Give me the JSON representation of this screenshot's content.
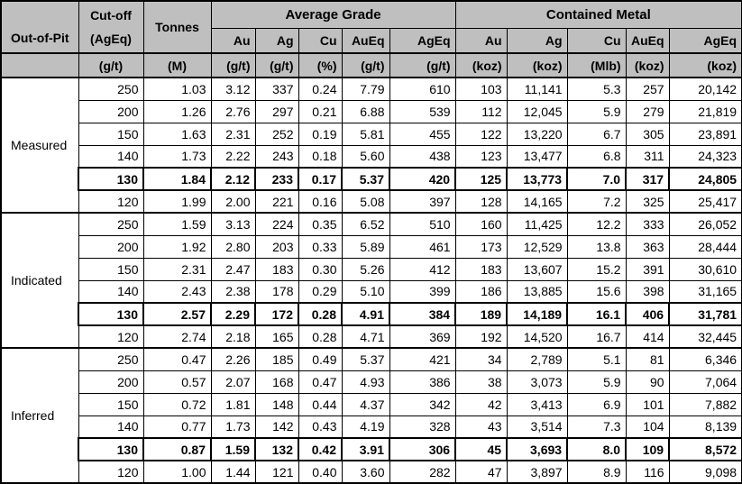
{
  "colors": {
    "header_bg": "#bfbfbf",
    "border": "#000000",
    "body_bg": "#ffffff"
  },
  "table": {
    "row_header": {
      "title": "Out-of-Pit"
    },
    "cutoff": {
      "line1": "Cut-off",
      "line2": "(AgEq)",
      "unit": "(g/t)"
    },
    "tonnes": {
      "label": "Tonnes",
      "unit": "(M)"
    },
    "groups": [
      {
        "label": "Average Grade",
        "columns": [
          "Au",
          "Ag",
          "Cu",
          "AuEq",
          "AgEq"
        ],
        "units": [
          "(g/t)",
          "(g/t)",
          "(%)",
          "(g/t)",
          "(g/t)"
        ]
      },
      {
        "label": "Contained Metal",
        "columns": [
          "Au",
          "Ag",
          "Cu",
          "AuEq",
          "AgEq"
        ],
        "units": [
          "(koz)",
          "(koz)",
          "(Mlb)",
          "(koz)",
          "(koz)"
        ]
      }
    ],
    "sections": [
      {
        "name": "Measured",
        "rows": [
          {
            "bold": false,
            "cells": [
              "250",
              "1.03",
              "3.12",
              "337",
              "0.24",
              "7.79",
              "610",
              "103",
              "11,141",
              "5.3",
              "257",
              "20,142"
            ]
          },
          {
            "bold": false,
            "cells": [
              "200",
              "1.26",
              "2.76",
              "297",
              "0.21",
              "6.88",
              "539",
              "112",
              "12,045",
              "5.9",
              "279",
              "21,819"
            ]
          },
          {
            "bold": false,
            "cells": [
              "150",
              "1.63",
              "2.31",
              "252",
              "0.19",
              "5.81",
              "455",
              "122",
              "13,220",
              "6.7",
              "305",
              "23,891"
            ]
          },
          {
            "bold": false,
            "cells": [
              "140",
              "1.73",
              "2.22",
              "243",
              "0.18",
              "5.60",
              "438",
              "123",
              "13,477",
              "6.8",
              "311",
              "24,323"
            ]
          },
          {
            "bold": true,
            "cells": [
              "130",
              "1.84",
              "2.12",
              "233",
              "0.17",
              "5.37",
              "420",
              "125",
              "13,773",
              "7.0",
              "317",
              "24,805"
            ]
          },
          {
            "bold": false,
            "cells": [
              "120",
              "1.99",
              "2.00",
              "221",
              "0.16",
              "5.08",
              "397",
              "128",
              "14,165",
              "7.2",
              "325",
              "25,417"
            ]
          }
        ]
      },
      {
        "name": "Indicated",
        "rows": [
          {
            "bold": false,
            "cells": [
              "250",
              "1.59",
              "3.13",
              "224",
              "0.35",
              "6.52",
              "510",
              "160",
              "11,425",
              "12.2",
              "333",
              "26,052"
            ]
          },
          {
            "bold": false,
            "cells": [
              "200",
              "1.92",
              "2.80",
              "203",
              "0.33",
              "5.89",
              "461",
              "173",
              "12,529",
              "13.8",
              "363",
              "28,444"
            ]
          },
          {
            "bold": false,
            "cells": [
              "150",
              "2.31",
              "2.47",
              "183",
              "0.30",
              "5.26",
              "412",
              "183",
              "13,607",
              "15.2",
              "391",
              "30,610"
            ]
          },
          {
            "bold": false,
            "cells": [
              "140",
              "2.43",
              "2.38",
              "178",
              "0.29",
              "5.10",
              "399",
              "186",
              "13,885",
              "15.6",
              "398",
              "31,165"
            ]
          },
          {
            "bold": true,
            "cells": [
              "130",
              "2.57",
              "2.29",
              "172",
              "0.28",
              "4.91",
              "384",
              "189",
              "14,189",
              "16.1",
              "406",
              "31,781"
            ]
          },
          {
            "bold": false,
            "cells": [
              "120",
              "2.74",
              "2.18",
              "165",
              "0.28",
              "4.71",
              "369",
              "192",
              "14,520",
              "16.7",
              "414",
              "32,445"
            ]
          }
        ]
      },
      {
        "name": "Inferred",
        "rows": [
          {
            "bold": false,
            "cells": [
              "250",
              "0.47",
              "2.26",
              "185",
              "0.49",
              "5.37",
              "421",
              "34",
              "2,789",
              "5.1",
              "81",
              "6,346"
            ]
          },
          {
            "bold": false,
            "cells": [
              "200",
              "0.57",
              "2.07",
              "168",
              "0.47",
              "4.93",
              "386",
              "38",
              "3,073",
              "5.9",
              "90",
              "7,064"
            ]
          },
          {
            "bold": false,
            "cells": [
              "150",
              "0.72",
              "1.81",
              "148",
              "0.44",
              "4.37",
              "342",
              "42",
              "3,413",
              "6.9",
              "101",
              "7,882"
            ]
          },
          {
            "bold": false,
            "cells": [
              "140",
              "0.77",
              "1.73",
              "142",
              "0.43",
              "4.19",
              "328",
              "43",
              "3,514",
              "7.3",
              "104",
              "8,139"
            ]
          },
          {
            "bold": true,
            "cells": [
              "130",
              "0.87",
              "1.59",
              "132",
              "0.42",
              "3.91",
              "306",
              "45",
              "3,693",
              "8.0",
              "109",
              "8,572"
            ]
          },
          {
            "bold": false,
            "cells": [
              "120",
              "1.00",
              "1.44",
              "121",
              "0.40",
              "3.60",
              "282",
              "47",
              "3,897",
              "8.9",
              "116",
              "9,098"
            ]
          }
        ]
      }
    ]
  }
}
